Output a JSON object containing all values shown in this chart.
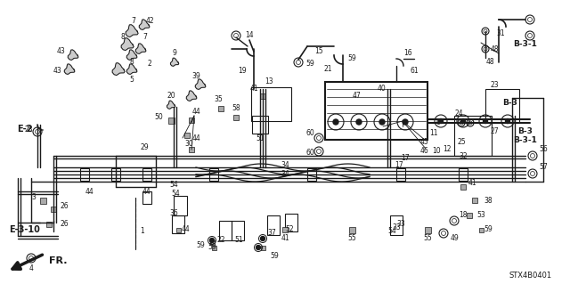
{
  "bg_color": "#ffffff",
  "line_color": "#1a1a1a",
  "fig_width": 6.4,
  "fig_height": 3.19,
  "dpi": 100,
  "part_code": "STX4B0401",
  "image_extent": [
    0,
    640,
    0,
    319
  ]
}
